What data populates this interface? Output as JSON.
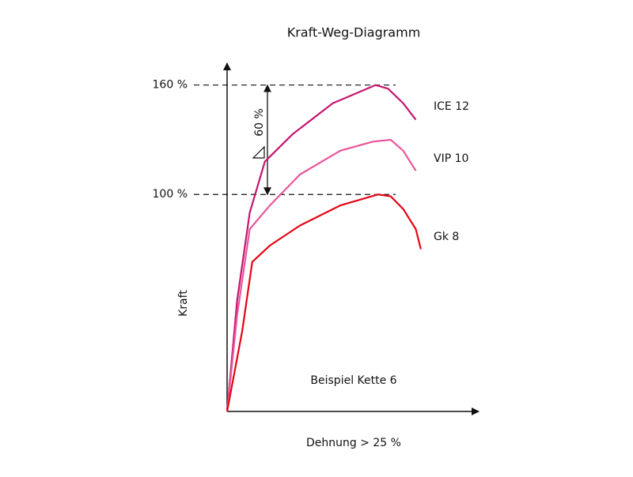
{
  "chart_data": {
    "type": "line",
    "title": "Kraft-Weg-Diagramm",
    "x_label": "Dehnung > 25 %",
    "y_label": "Kraft",
    "annotations": [
      "60 %",
      "Beispiel Kette 6"
    ],
    "xlim": [
      0,
      100
    ],
    "ylim": [
      -19,
      172
    ],
    "yticks": [
      {
        "value": 100,
        "label": "100 %"
      },
      {
        "value": 160,
        "label": "160 %"
      }
    ],
    "grid": true,
    "series": [
      {
        "name": "ICE 12",
        "color": "#c4166f",
        "x": [
          0,
          4,
          9,
          15,
          26,
          42,
          59,
          64,
          70,
          75
        ],
        "values": [
          -19,
          42,
          90,
          118,
          133,
          150,
          160,
          158,
          150,
          141
        ]
      },
      {
        "name": "VIP 10",
        "color": "#e8559a",
        "x": [
          0,
          4,
          9,
          17,
          29,
          45,
          58,
          65,
          70,
          75
        ],
        "values": [
          -19,
          34,
          81,
          94,
          111,
          124,
          129,
          130,
          124,
          113
        ]
      },
      {
        "name": "Gk 8",
        "color": "#e30613",
        "x": [
          0,
          6,
          10,
          17,
          29,
          45,
          60,
          65,
          70,
          75,
          77
        ],
        "values": [
          -19,
          25,
          63,
          72,
          83,
          94,
          100,
          99,
          92,
          81,
          70
        ]
      }
    ]
  }
}
